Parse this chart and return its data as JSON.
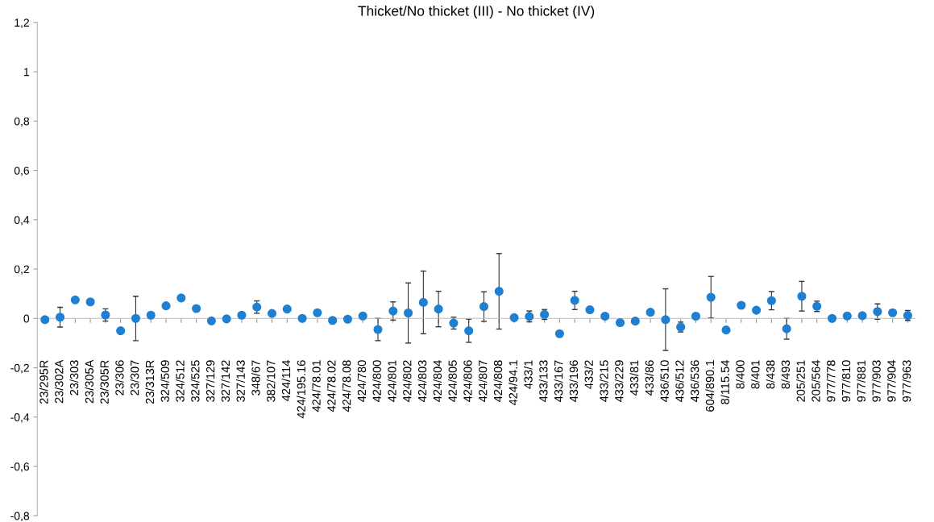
{
  "chart_data": {
    "type": "scatter",
    "title": "Thicket/No thicket (III) - No thicket (IV)",
    "categories": [
      "23/295R",
      "23/302A",
      "23/303",
      "23/305A",
      "23/305R",
      "23/306",
      "23/307",
      "23/313R",
      "324/509",
      "324/512",
      "324/525",
      "327/129",
      "327/142",
      "327/143",
      "348/67",
      "382/107",
      "424/114",
      "424/195.16",
      "424/78.01",
      "424/78.02",
      "424/78.08",
      "424/780",
      "424/800",
      "424/801",
      "424/802",
      "424/803",
      "424/804",
      "424/805",
      "424/806",
      "424/807",
      "424/808",
      "424/94.1",
      "433/1",
      "433/133",
      "433/167",
      "433/196",
      "433/2",
      "433/215",
      "433/229",
      "433/81",
      "433/86",
      "436/510",
      "436/512",
      "436/536",
      "604/890.1",
      "8/115.54",
      "8/400",
      "8/401",
      "8/438",
      "8/493",
      "205/251",
      "205/564",
      "977/778",
      "977/810",
      "977/881",
      "977/903",
      "977/904",
      "977/963"
    ],
    "series": [
      {
        "color": "#1f7fd1",
        "values": [
          -0.005,
          0.005,
          0.075,
          0.067,
          0.014,
          -0.05,
          0,
          0.013,
          0.051,
          0.083,
          0.04,
          -0.01,
          -0.002,
          0.013,
          0.046,
          0.02,
          0.038,
          0,
          0.023,
          -0.008,
          -0.003,
          0.01,
          -0.045,
          0.03,
          0.022,
          0.065,
          0.038,
          -0.019,
          -0.05,
          0.048,
          0.11,
          0.003,
          0.008,
          0.016,
          -0.062,
          0.073,
          0.035,
          0.009,
          -0.017,
          -0.011,
          0.025,
          -0.005,
          -0.035,
          0.009,
          0.086,
          -0.047,
          0.053,
          0.033,
          0.072,
          -0.042,
          0.09,
          0.049,
          0,
          0.01,
          0.011,
          0.028,
          0.023,
          0.012
        ],
        "errors": [
          null,
          0.04,
          null,
          null,
          0.025,
          null,
          0.09,
          null,
          null,
          null,
          null,
          null,
          null,
          null,
          0.025,
          null,
          null,
          null,
          null,
          null,
          null,
          null,
          0.045,
          0.037,
          0.122,
          0.127,
          0.072,
          0.024,
          0.047,
          0.06,
          0.153,
          null,
          0.022,
          0.02,
          null,
          0.037,
          null,
          null,
          null,
          null,
          null,
          0.125,
          0.02,
          null,
          0.084,
          null,
          null,
          null,
          0.037,
          0.042,
          0.06,
          0.021,
          null,
          null,
          null,
          0.031,
          null,
          0.02
        ]
      }
    ],
    "ylim": [
      -0.8,
      1.2
    ],
    "yticks": [
      {
        "value": -0.8,
        "label": "-0,8"
      },
      {
        "value": -0.6,
        "label": "-0,6"
      },
      {
        "value": -0.4,
        "label": "-0,4"
      },
      {
        "value": -0.2,
        "label": "-0,2"
      },
      0,
      {
        "value": 0.2,
        "label": "0,2"
      },
      {
        "value": 0.4,
        "label": "0,4"
      },
      {
        "value": 0.6,
        "label": "0,6"
      },
      {
        "value": 0.8,
        "label": "0,8"
      },
      1,
      {
        "value": 1.2,
        "label": "1,2"
      }
    ],
    "marker": "circle",
    "legend": false
  }
}
